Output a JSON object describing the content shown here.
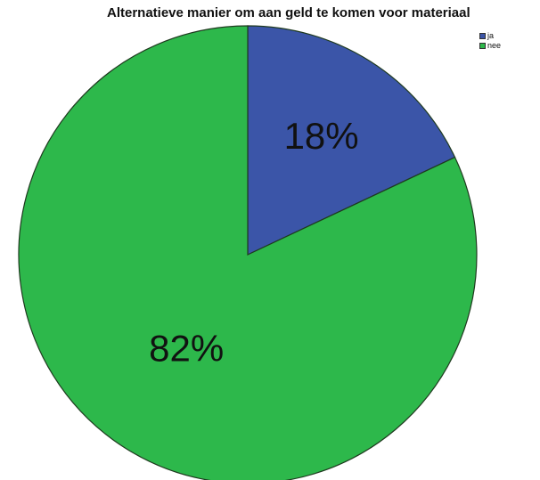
{
  "chart_data": {
    "type": "pie",
    "title": "Alternatieve manier om aan geld te komen voor materiaal",
    "slices": [
      {
        "label": "ja",
        "value": 18,
        "display": "18%",
        "color": "#3b55a8"
      },
      {
        "label": "nee",
        "value": 82,
        "display": "82%",
        "color": "#2db84b"
      }
    ],
    "legend": {
      "position": "top-right",
      "entries": [
        "ja",
        "nee"
      ]
    },
    "start": "top",
    "direction": "clockwise",
    "border_color": "#1f3a1f"
  }
}
